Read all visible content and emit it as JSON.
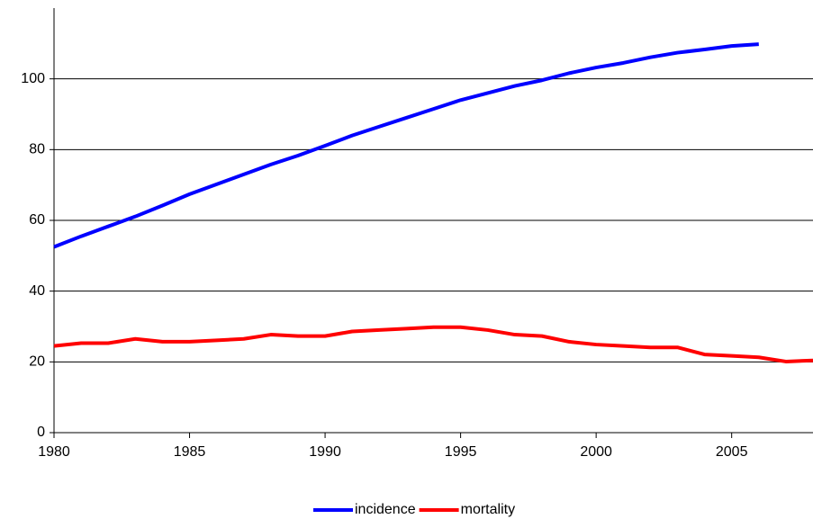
{
  "chart_data": {
    "type": "line",
    "x": [
      1980,
      1981,
      1982,
      1983,
      1984,
      1985,
      1986,
      1987,
      1988,
      1989,
      1990,
      1991,
      1992,
      1993,
      1994,
      1995,
      1996,
      1997,
      1998,
      1999,
      2000,
      2001,
      2002,
      2003,
      2004,
      2005,
      2006,
      2007,
      2008
    ],
    "series": [
      {
        "name": "incidence",
        "color": "#0000ff",
        "values": [
          52.5,
          55.5,
          58.3,
          61.1,
          64.2,
          67.4,
          70.2,
          73.0,
          75.8,
          78.3,
          81.1,
          84.0,
          86.5,
          89.0,
          91.5,
          94.0,
          96.0,
          98.0,
          99.6,
          101.6,
          103.2,
          104.5,
          106.1,
          107.4,
          108.3,
          109.3,
          109.8,
          null,
          null
        ]
      },
      {
        "name": "mortality",
        "color": "#ff0000",
        "values": [
          24.5,
          25.3,
          25.3,
          26.5,
          25.7,
          25.7,
          26.1,
          26.5,
          27.7,
          27.3,
          27.3,
          28.6,
          29.0,
          29.4,
          29.8,
          29.8,
          29.0,
          27.7,
          27.3,
          25.7,
          24.9,
          24.5,
          24.1,
          24.1,
          22.1,
          21.7,
          21.3,
          20.1,
          20.4
        ]
      }
    ],
    "xlim": [
      1980,
      2008
    ],
    "xticks": [
      1980,
      1985,
      1990,
      1995,
      2000,
      2005
    ],
    "ylim": [
      0,
      120
    ],
    "yticks": [
      0,
      20,
      40,
      60,
      80,
      100
    ],
    "grid": true,
    "legend": "bottom"
  }
}
